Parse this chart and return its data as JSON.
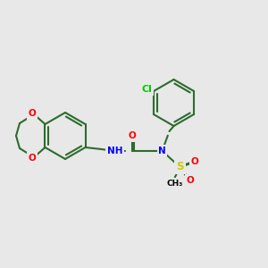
{
  "background_color": "#e8e8e8",
  "bond_color": "#2d6b2d",
  "atom_colors": {
    "O": "#ff0000",
    "N": "#0000ff",
    "Cl": "#00cc00",
    "S": "#cccc00",
    "C": "#000000"
  },
  "bond_width": 1.5,
  "font_size": 7.5
}
